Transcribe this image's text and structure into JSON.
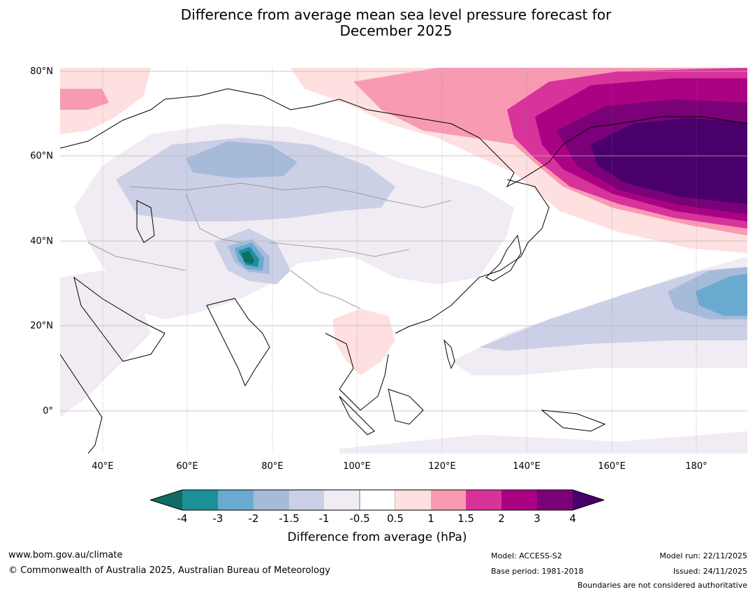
{
  "title": {
    "line1": "Difference from average mean sea level pressure forecast for",
    "line2": "December 2025"
  },
  "map": {
    "lat_labels": [
      "80°N",
      "60°N",
      "40°N",
      "20°N",
      "0°"
    ],
    "lon_labels": [
      "40°E",
      "60°E",
      "80°E",
      "100°E",
      "120°E",
      "140°E",
      "160°E",
      "180°"
    ]
  },
  "colorbar": {
    "ticks": [
      "-4",
      "-3",
      "-2",
      "-1.5",
      "-1",
      "-0.5",
      "0.5",
      "1",
      "1.5",
      "2",
      "3",
      "4"
    ],
    "colors": [
      "#0f6b63",
      "#1b9097",
      "#6aaad1",
      "#a6bbd9",
      "#ccd0e6",
      "#f1ebf4",
      "#ffffff",
      "#fde0df",
      "#f99ab3",
      "#d8339b",
      "#ab0283",
      "#7a0177",
      "#49006a"
    ],
    "label": "Difference from average (hPa)"
  },
  "footer": {
    "website": "www.bom.gov.au/climate",
    "copyright": "© Commonwealth of Australia 2025, Australian Bureau of Meteorology",
    "model": "Model: ACCESS-S2",
    "base_period": "Base period: 1981-2018",
    "model_run": "Model run: 22/11/2025",
    "issued": "Issued: 24/11/2025",
    "disclaimer": "Boundaries are not considered authoritative"
  }
}
